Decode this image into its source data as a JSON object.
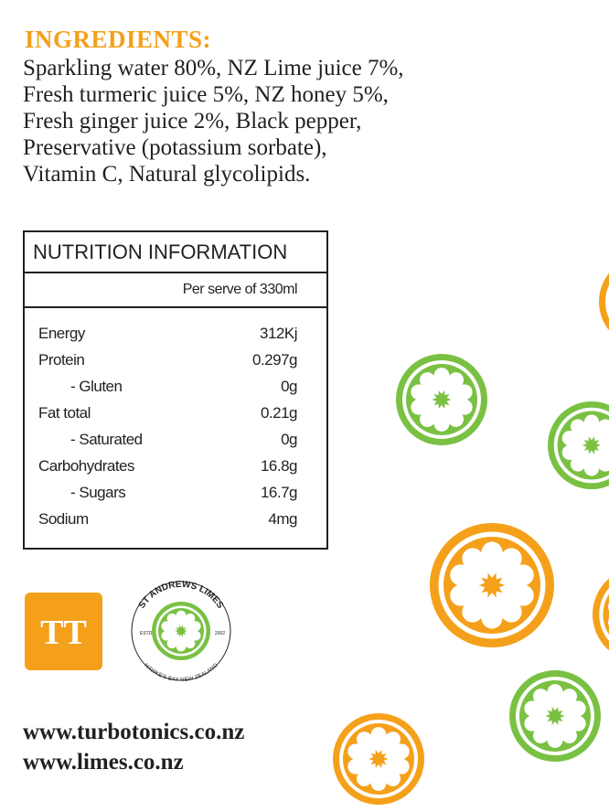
{
  "ingredients": {
    "title": "INGREDIENTS:",
    "lines": [
      "Sparkling water 80%, NZ Lime juice 7%,",
      "Fresh turmeric juice 5%, NZ honey 5%,",
      "Fresh ginger juice 2%, Black pepper,",
      "Preservative (potassium sorbate),",
      "Vitamin C, Natural glycolipids."
    ]
  },
  "nutrition": {
    "title": "NUTRITION INFORMATION",
    "serving": "Per serve of 330ml",
    "rows": [
      [
        "Energy",
        "312Kj"
      ],
      [
        "Protein",
        "0.297g"
      ],
      [
        "- Gluten",
        "0g"
      ],
      [
        "Fat total",
        "0.21g"
      ],
      [
        "- Saturated",
        "0g"
      ],
      [
        "Carbohydrates",
        "16.8g"
      ],
      [
        "- Sugars",
        "16.7g"
      ],
      [
        "Sodium",
        "4mg"
      ]
    ]
  },
  "logos": {
    "tt": "TT",
    "limes": {
      "top": "ST ANDREWS LIMES",
      "bottom": "HAWKE'S BAY NEW ZEALAND",
      "left": "ESTD",
      "right": "2002"
    }
  },
  "links": [
    "www.turbotonics.co.nz",
    "www.limes.co.nz"
  ]
}
